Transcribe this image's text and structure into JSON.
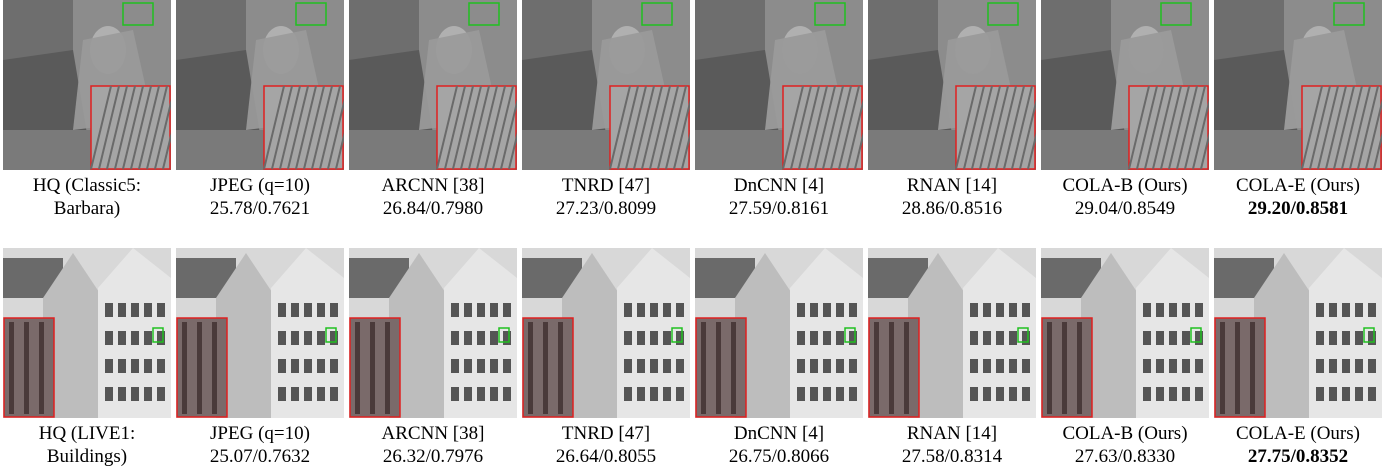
{
  "rows": [
    {
      "cells": [
        {
          "line1": "HQ (Classic5:",
          "line2": "Barbara)"
        },
        {
          "line1": "JPEG (q=10)",
          "line2": "25.78/0.7621"
        },
        {
          "line1": "ARCNN [38]",
          "line2": "26.84/0.7980"
        },
        {
          "line1": "TNRD [47]",
          "line2": "27.23/0.8099"
        },
        {
          "line1": "DnCNN [4]",
          "line2": "27.59/0.8161"
        },
        {
          "line1": "RNAN [14]",
          "line2": "28.86/0.8516"
        },
        {
          "line1": "COLA-B (Ours)",
          "line2": "29.04/0.8549"
        },
        {
          "line1": "COLA-E (Ours)",
          "line2": "29.20/0.8581"
        }
      ]
    },
    {
      "cells": [
        {
          "line1": "HQ (LIVE1:",
          "line2": "Buildings)"
        },
        {
          "line1": "JPEG (q=10)",
          "line2": "25.07/0.7632"
        },
        {
          "line1": "ARCNN [38]",
          "line2": "26.32/0.7976"
        },
        {
          "line1": "TNRD [47]",
          "line2": "26.64/0.8055"
        },
        {
          "line1": "DnCNN [4]",
          "line2": "26.75/0.8066"
        },
        {
          "line1": "RNAN [14]",
          "line2": "27.58/0.8314"
        },
        {
          "line1": "COLA-B (Ours)",
          "line2": "27.63/0.8330"
        },
        {
          "line1": "COLA-E (Ours)",
          "line2": "27.75/0.8352"
        }
      ]
    }
  ]
}
